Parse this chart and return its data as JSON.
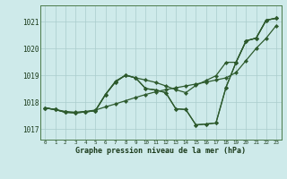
{
  "title": "Graphe pression niveau de la mer (hPa)",
  "bg_color": "#ceeaea",
  "grid_color": "#aacccc",
  "line_color": "#2d5a2d",
  "x_ticks": [
    0,
    1,
    2,
    3,
    4,
    5,
    6,
    7,
    8,
    9,
    10,
    11,
    12,
    13,
    14,
    15,
    16,
    17,
    18,
    19,
    20,
    21,
    22,
    23
  ],
  "ylim": [
    1016.6,
    1021.6
  ],
  "yticks": [
    1017,
    1018,
    1019,
    1020,
    1021
  ],
  "line1": [
    1017.78,
    1017.72,
    1017.65,
    1017.62,
    1017.65,
    1017.7,
    1017.82,
    1017.93,
    1018.05,
    1018.17,
    1018.28,
    1018.38,
    1018.46,
    1018.53,
    1018.6,
    1018.67,
    1018.74,
    1018.82,
    1018.9,
    1019.1,
    1019.55,
    1020.0,
    1020.38,
    1020.85
  ],
  "line2": [
    1017.78,
    1017.72,
    1017.62,
    1017.6,
    1017.63,
    1017.68,
    1018.28,
    1018.78,
    1019.0,
    1018.9,
    1018.82,
    1018.73,
    1018.6,
    1018.46,
    1018.35,
    1018.62,
    1018.8,
    1018.98,
    1019.48,
    1019.48,
    1020.28,
    1020.38,
    1021.05,
    1021.12
  ],
  "line3": [
    1017.78,
    1017.72,
    1017.62,
    1017.6,
    1017.63,
    1017.68,
    1018.28,
    1018.75,
    1019.0,
    1018.9,
    1018.5,
    1018.45,
    1018.35,
    1017.75,
    1017.72,
    1017.15,
    1017.18,
    1017.22,
    1018.55,
    1019.48,
    1020.28,
    1020.38,
    1021.05,
    1021.12
  ],
  "line4": [
    1017.78,
    1017.72,
    1017.62,
    1017.6,
    1017.63,
    1017.68,
    1018.28,
    1018.75,
    1019.0,
    1018.9,
    1018.5,
    1018.45,
    1018.35,
    1017.75,
    1017.72,
    1017.15,
    1017.18,
    1017.22,
    1018.55,
    1019.48,
    1020.28,
    1020.38,
    1021.05,
    1021.12
  ]
}
